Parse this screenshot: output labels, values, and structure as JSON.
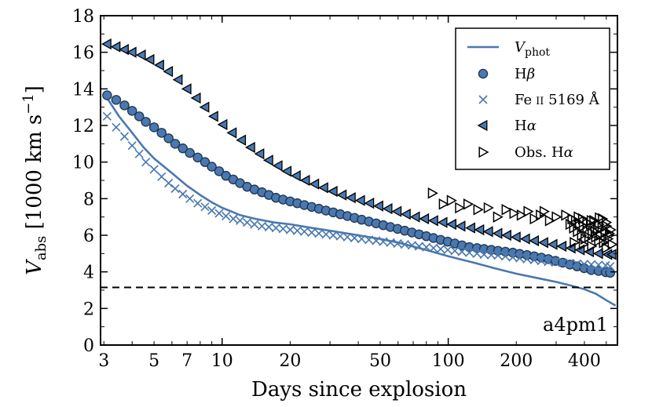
{
  "chart_data": {
    "type": "scatter",
    "x_scale": "log",
    "xlabel": "Days since explosion",
    "ylabel": "V_abs [1000 km s^-1]",
    "ylabel_parts": {
      "main": "V",
      "sub": "abs",
      "bracket_open": " [1000 km s",
      "sup": "−1",
      "bracket_close": "]"
    },
    "xlim": [
      2.9,
      560
    ],
    "ylim": [
      0,
      18
    ],
    "xticks": [
      3,
      5,
      7,
      10,
      20,
      50,
      100,
      200,
      400
    ],
    "yticks": [
      0,
      2,
      4,
      6,
      8,
      10,
      12,
      14,
      16,
      18
    ],
    "annotation": "a4pm1",
    "reference_line": {
      "y": 3.15,
      "style": "dashed"
    },
    "legend_position": "top-right",
    "colors": {
      "blue": "#4a78b0",
      "black": "#000000",
      "marker_edge": "#1f3550"
    },
    "series": [
      {
        "name": "V_phot",
        "legend_label": {
          "main": "V",
          "sub": "phot"
        },
        "marker": "line",
        "x": [
          3.1,
          3.5,
          4,
          4.5,
          5,
          6,
          7,
          8,
          9,
          10,
          11,
          12,
          14,
          17,
          20,
          25,
          30,
          40,
          50,
          60,
          80,
          100,
          130,
          160,
          200,
          250,
          300,
          350,
          400,
          450,
          500,
          550
        ],
        "y": [
          13.5,
          12.5,
          11.6,
          10.8,
          10.2,
          9.4,
          8.7,
          8.2,
          7.8,
          7.5,
          7.3,
          7.1,
          6.9,
          6.7,
          6.6,
          6.4,
          6.25,
          6.0,
          5.8,
          5.6,
          5.2,
          4.85,
          4.5,
          4.2,
          3.9,
          3.65,
          3.45,
          3.25,
          3.05,
          2.8,
          2.45,
          2.15
        ]
      },
      {
        "name": "Hβ",
        "legend_label": {
          "main": "H",
          "greek": "β"
        },
        "marker": "circle",
        "x": [
          3.1,
          3.4,
          3.7,
          4.0,
          4.3,
          4.6,
          5.0,
          5.4,
          5.8,
          6.2,
          6.7,
          7.2,
          7.8,
          8.4,
          9.0,
          9.7,
          10.4,
          11.2,
          12.0,
          12.9,
          13.9,
          15.0,
          16.1,
          17.3,
          18.6,
          20.0,
          21.5,
          23.1,
          24.9,
          26.8,
          28.8,
          31.0,
          33.3,
          35.8,
          38.5,
          41.4,
          44.6,
          48.0,
          51.6,
          55.5,
          59.7,
          64.2,
          69.1,
          74.3,
          80.0,
          86.0,
          92.5,
          99.5,
          107,
          115,
          124,
          134,
          144,
          155,
          166,
          179,
          193,
          207,
          223,
          240,
          258,
          277,
          298,
          321,
          345,
          371,
          399,
          429,
          462,
          497,
          520
        ],
        "y": [
          13.65,
          13.4,
          13.1,
          12.8,
          12.5,
          12.2,
          11.9,
          11.6,
          11.3,
          11.0,
          10.75,
          10.5,
          10.25,
          10.0,
          9.75,
          9.5,
          9.25,
          9.05,
          8.85,
          8.65,
          8.5,
          8.35,
          8.2,
          8.05,
          7.95,
          7.85,
          7.75,
          7.65,
          7.55,
          7.45,
          7.35,
          7.25,
          7.15,
          7.05,
          6.95,
          6.85,
          6.75,
          6.65,
          6.55,
          6.45,
          6.35,
          6.25,
          6.15,
          6.05,
          5.95,
          5.85,
          5.75,
          5.65,
          5.55,
          5.45,
          5.35,
          5.3,
          5.25,
          5.2,
          5.15,
          5.1,
          5.05,
          4.98,
          4.92,
          4.85,
          4.78,
          4.7,
          4.6,
          4.5,
          4.4,
          4.3,
          4.2,
          4.1,
          4.05,
          3.98,
          3.95
        ]
      },
      {
        "name": "Fe II 5169 Å",
        "legend_label": {
          "main": "Fe",
          "ion": "II",
          "rest": " 5169 Å"
        },
        "marker": "cross",
        "x": [
          3.1,
          3.4,
          3.7,
          4.0,
          4.3,
          4.6,
          5.0,
          5.4,
          5.8,
          6.2,
          6.7,
          7.2,
          7.8,
          8.4,
          9.0,
          9.7,
          10.4,
          11.2,
          12.0,
          12.9,
          13.9,
          15.0,
          16.1,
          17.3,
          18.6,
          20.0,
          21.5,
          23.1,
          24.9,
          26.8,
          28.8,
          31.0,
          33.3,
          35.8,
          38.5,
          41.4,
          44.6,
          48.0,
          51.6,
          55.5,
          59.7,
          64.2,
          69.1,
          74.3,
          80.0,
          86.0,
          92.5,
          99.5,
          107,
          115,
          124,
          134,
          144,
          155,
          166,
          179,
          193,
          207,
          223,
          240,
          258,
          277,
          298,
          321,
          345,
          371,
          399,
          429,
          462,
          497,
          520
        ],
        "y": [
          12.5,
          11.9,
          11.4,
          10.9,
          10.45,
          10.0,
          9.6,
          9.2,
          8.85,
          8.55,
          8.25,
          8.0,
          7.75,
          7.55,
          7.35,
          7.2,
          7.05,
          6.9,
          6.8,
          6.7,
          6.6,
          6.5,
          6.45,
          6.4,
          6.35,
          6.3,
          6.25,
          6.2,
          6.15,
          6.1,
          6.05,
          6.0,
          5.95,
          5.9,
          5.85,
          5.8,
          5.75,
          5.7,
          5.65,
          5.6,
          5.55,
          5.5,
          5.45,
          5.4,
          5.35,
          5.3,
          5.25,
          5.2,
          5.15,
          5.1,
          5.05,
          5.0,
          4.95,
          4.92,
          4.9,
          4.85,
          4.8,
          4.75,
          4.7,
          4.65,
          4.6,
          4.55,
          4.52,
          4.5,
          4.48,
          4.45,
          4.42,
          4.4,
          4.38,
          4.35,
          4.3
        ]
      },
      {
        "name": "Hα",
        "legend_label": {
          "main": "H",
          "greek": "α"
        },
        "marker": "triangle-left",
        "x": [
          3.1,
          3.4,
          3.7,
          4.0,
          4.4,
          4.8,
          5.3,
          5.8,
          6.4,
          7.0,
          7.7,
          8.4,
          9.2,
          10.1,
          11.1,
          12.2,
          13.4,
          14.7,
          16.1,
          17.7,
          19.4,
          21.3,
          23.4,
          25.7,
          28.2,
          31.0,
          34.0,
          37.3,
          41.0,
          45.0,
          49.4,
          54.2,
          59.5,
          65.3,
          71.7,
          78.7,
          86.4,
          94.9,
          104,
          114,
          126,
          138,
          151,
          166,
          182,
          200,
          220,
          241,
          265,
          291,
          319,
          350,
          384,
          422,
          463,
          508,
          530
        ],
        "y": [
          16.45,
          16.3,
          16.15,
          16.0,
          15.85,
          15.6,
          15.3,
          14.95,
          14.5,
          14.0,
          13.5,
          13.0,
          12.5,
          12.05,
          11.6,
          11.2,
          10.8,
          10.45,
          10.1,
          9.8,
          9.5,
          9.25,
          9.0,
          8.8,
          8.6,
          8.4,
          8.2,
          8.05,
          7.9,
          7.75,
          7.6,
          7.45,
          7.3,
          7.15,
          7.0,
          6.9,
          6.8,
          6.7,
          6.6,
          6.5,
          6.4,
          6.3,
          6.2,
          6.1,
          6.0,
          5.9,
          5.8,
          5.7,
          5.6,
          5.5,
          5.4,
          5.3,
          5.2,
          5.1,
          5.0,
          4.95,
          4.95
        ]
      },
      {
        "name": "Obs. Hα",
        "legend_label": {
          "main": "Obs. H",
          "greek": "α"
        },
        "marker": "triangle-right-open",
        "x": [
          85,
          95,
          103,
          112,
          122,
          135,
          150,
          165,
          180,
          195,
          210,
          225,
          240,
          255,
          265,
          280,
          300,
          330,
          345,
          352,
          358,
          365,
          372,
          380,
          388,
          395,
          402,
          410,
          418,
          425,
          432,
          440,
          448,
          456,
          463,
          470,
          478,
          485,
          493,
          500,
          508,
          515,
          523,
          530,
          375,
          392,
          410,
          428,
          445,
          462,
          480,
          498,
          515,
          360,
          395,
          430,
          465,
          500
        ],
        "y": [
          8.3,
          7.7,
          7.9,
          7.5,
          7.7,
          7.4,
          7.5,
          7.0,
          7.4,
          7.2,
          7.1,
          7.3,
          6.9,
          7.1,
          7.3,
          6.8,
          7.0,
          7.1,
          6.6,
          6.9,
          6.4,
          6.8,
          6.2,
          6.6,
          6.0,
          6.5,
          5.8,
          6.4,
          5.9,
          6.6,
          6.1,
          6.8,
          5.9,
          6.3,
          6.6,
          6.0,
          6.4,
          5.6,
          6.2,
          6.5,
          5.8,
          6.0,
          6.3,
          5.5,
          7.0,
          6.9,
          6.7,
          6.8,
          6.2,
          5.7,
          6.9,
          5.3,
          6.1,
          5.6,
          5.5,
          5.4,
          6.95,
          6.7
        ]
      }
    ]
  }
}
